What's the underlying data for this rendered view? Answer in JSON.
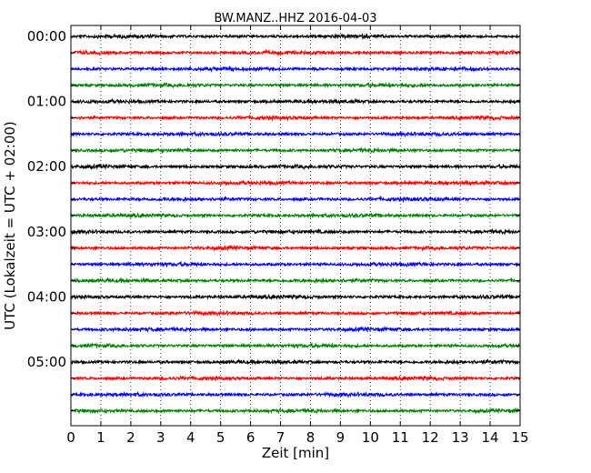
{
  "chart_data": {
    "type": "line",
    "title": "BW.MANZ..HHZ 2016-04-03",
    "xlabel": "Zeit  [min]",
    "ylabel": "UTC (Lokalzeit = UTC + 02:00)",
    "xlim": [
      0,
      15
    ],
    "x_ticks": [
      "0",
      "1",
      "2",
      "3",
      "4",
      "5",
      "6",
      "7",
      "8",
      "9",
      "10",
      "11",
      "12",
      "13",
      "14",
      "15"
    ],
    "y_tick_labels": [
      "00:00",
      "01:00",
      "02:00",
      "03:00",
      "04:00",
      "05:00"
    ],
    "trace_count": 24,
    "trace_interval_minutes": 15,
    "colors": [
      "#000000",
      "#ff0000",
      "#0000ff",
      "#008000"
    ],
    "grid": "vertical dotted at each minute"
  }
}
